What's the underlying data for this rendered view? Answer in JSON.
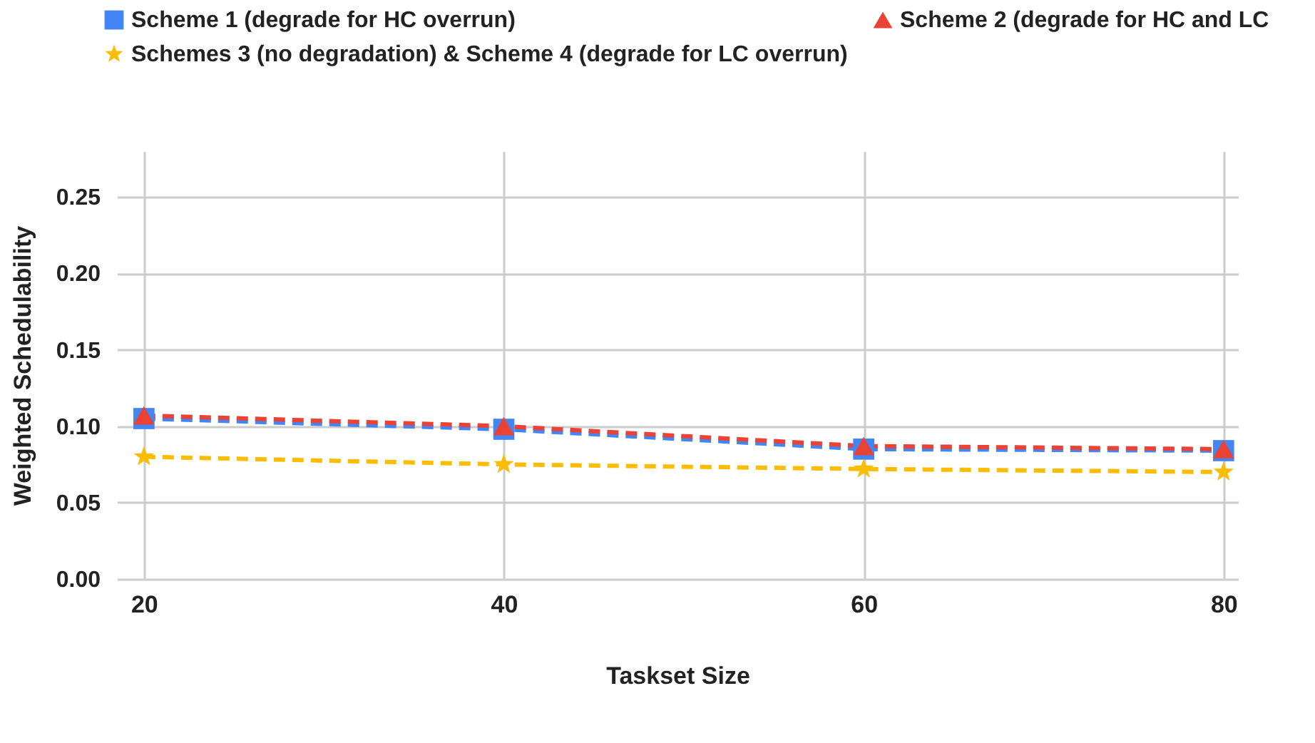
{
  "chart_data": {
    "type": "line",
    "xlabel": "Taskset Size",
    "ylabel": "Weighted Schedulability",
    "x": [
      20,
      40,
      60,
      80
    ],
    "xlim": [
      18.5,
      80.8
    ],
    "xticks": [
      20,
      40,
      60,
      80
    ],
    "ylim": [
      0,
      0.28
    ],
    "yticks": [
      {
        "value": 0,
        "label": "0.00"
      },
      {
        "value": 0.05,
        "label": "0.05"
      },
      {
        "value": 0.1,
        "label": "0.10"
      },
      {
        "value": 0.15,
        "label": "0.15"
      },
      {
        "value": 0.2,
        "label": "0.20"
      },
      {
        "value": 0.25,
        "label": "0.25"
      }
    ],
    "grid": true,
    "legend": "top",
    "line_style": "dashed",
    "series": [
      {
        "name": "Scheme 1 (degrade for HC overrun)",
        "color": "#4285f4",
        "marker": "square",
        "values": [
          0.105,
          0.098,
          0.085,
          0.084
        ]
      },
      {
        "name": "Scheme 2 (degrade for HC and LC",
        "color": "#ea4335",
        "marker": "triangle",
        "values": [
          0.107,
          0.1,
          0.087,
          0.085
        ]
      },
      {
        "name": "Schemes 3 (no degradation) & Scheme 4 (degrade for LC overrun)",
        "color": "#fbbc04",
        "marker": "star",
        "values": [
          0.08,
          0.075,
          0.072,
          0.07
        ]
      }
    ]
  }
}
